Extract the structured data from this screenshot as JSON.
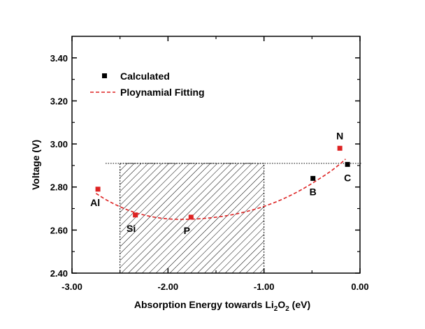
{
  "chart_data": {
    "type": "scatter",
    "xlabel_parts": [
      "Absorption Energy towards Li",
      "2",
      "O",
      "2",
      " (eV)"
    ],
    "ylabel": "Voltage (V)",
    "xlim": [
      -3.0,
      0.0
    ],
    "ylim": [
      2.4,
      3.5
    ],
    "x_ticks": [
      -3.0,
      -2.0,
      -1.0,
      0.0
    ],
    "x_tick_labels": [
      "-3.00",
      "-2.00",
      "-1.00",
      "0.00"
    ],
    "y_ticks": [
      2.4,
      2.6,
      2.8,
      3.0,
      3.2,
      3.4
    ],
    "y_tick_labels": [
      "2.40",
      "2.60",
      "2.80",
      "3.00",
      "3.20",
      "3.40"
    ],
    "legend": {
      "position": "top-left",
      "entries": [
        {
          "label": "Calculated",
          "marker": "square",
          "color": "#000000"
        },
        {
          "label": "Ploynamial Fitting",
          "marker": "dashed-line",
          "color": "#dd2222"
        }
      ]
    },
    "points": [
      {
        "label": "Al",
        "x": -2.73,
        "y": 2.79,
        "color": "#dd2222"
      },
      {
        "label": "Si",
        "x": -2.34,
        "y": 2.67,
        "color": "#dd2222"
      },
      {
        "label": "P",
        "x": -1.76,
        "y": 2.66,
        "color": "#dd2222"
      },
      {
        "label": "B",
        "x": -0.49,
        "y": 2.84,
        "color": "#000000"
      },
      {
        "label": "N",
        "x": -0.21,
        "y": 2.98,
        "color": "#dd2222"
      },
      {
        "label": "C",
        "x": -0.13,
        "y": 2.905,
        "color": "#000000"
      }
    ],
    "fit_curve": {
      "x": [
        -2.75,
        -2.6,
        -2.4,
        -2.2,
        -2.0,
        -1.8,
        -1.6,
        -1.4,
        -1.2,
        -1.0,
        -0.8,
        -0.6,
        -0.4,
        -0.3,
        -0.2,
        -0.15
      ],
      "y": [
        2.77,
        2.73,
        2.69,
        2.665,
        2.652,
        2.65,
        2.655,
        2.666,
        2.684,
        2.71,
        2.745,
        2.79,
        2.845,
        2.875,
        2.91,
        2.93
      ]
    },
    "reference_line_y": 2.91,
    "hatched_region": {
      "x": [
        -2.5,
        -1.0
      ],
      "y": [
        2.4,
        2.91
      ]
    },
    "colors": {
      "calculated": "#000000",
      "fit": "#dd2222",
      "highlight": "#dd2222"
    }
  }
}
